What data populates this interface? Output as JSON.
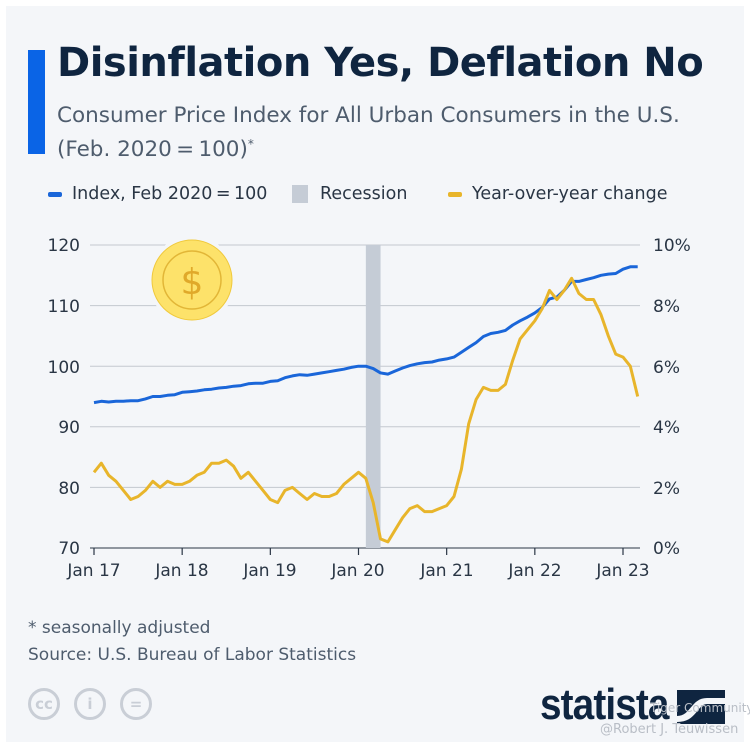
{
  "header": {
    "title": "Disinflation Yes, Deflation No",
    "subtitle_line1": "Consumer Price Index for All Urban Consumers in the U.S.",
    "subtitle_line2": "(Feb. 2020 = 100)",
    "subtitle_mark": "*"
  },
  "legend": {
    "index": "Index, Feb 2020 = 100",
    "recession": "Recession",
    "yoy": "Year-over-year change"
  },
  "colors": {
    "accent": "#0a64e6",
    "index": "#1a66d9",
    "yoy": "#e8b52b",
    "recession": "#c5ccd6",
    "title": "#0f2540"
  },
  "chart_data": {
    "type": "line",
    "x_start": "Jan 2017",
    "x_end": "Mar 2023",
    "frequency": "monthly",
    "x_ticks": [
      "Jan 17",
      "Jan 18",
      "Jan 19",
      "Jan 20",
      "Jan 21",
      "Jan 22",
      "Jan 23"
    ],
    "y_left": {
      "ticks": [
        "70",
        "80",
        "90",
        "100",
        "110",
        "120"
      ],
      "range": [
        70,
        120
      ]
    },
    "y_right": {
      "ticks": [
        "0%",
        "2%",
        "4%",
        "6%",
        "8%",
        "10%"
      ],
      "range": [
        0,
        10
      ],
      "unit": "%"
    },
    "grid": true,
    "legend_position": "top",
    "recession": {
      "start": "Feb 2020",
      "end": "Apr 2020"
    },
    "series": [
      {
        "name": "Index, Feb 2020=100",
        "axis": "left",
        "values": [
          94.0,
          94.2,
          94.1,
          94.2,
          94.2,
          94.3,
          94.3,
          94.6,
          95.0,
          95.0,
          95.2,
          95.3,
          95.7,
          95.8,
          95.9,
          96.1,
          96.2,
          96.4,
          96.5,
          96.7,
          96.8,
          97.1,
          97.2,
          97.2,
          97.5,
          97.6,
          98.1,
          98.4,
          98.6,
          98.5,
          98.7,
          98.9,
          99.1,
          99.3,
          99.5,
          99.8,
          100.0,
          100.0,
          99.6,
          98.9,
          98.7,
          99.2,
          99.7,
          100.1,
          100.4,
          100.6,
          100.7,
          101.0,
          101.2,
          101.5,
          102.3,
          103.1,
          103.9,
          104.9,
          105.4,
          105.6,
          105.9,
          106.8,
          107.5,
          108.1,
          108.8,
          109.7,
          111.1,
          111.4,
          112.5,
          114.0,
          114.0,
          114.3,
          114.6,
          115.0,
          115.2,
          115.3,
          116.0,
          116.4,
          116.4
        ]
      },
      {
        "name": "Year-over-year change",
        "axis": "right",
        "values": [
          2.5,
          2.8,
          2.4,
          2.2,
          1.9,
          1.6,
          1.7,
          1.9,
          2.2,
          2.0,
          2.2,
          2.1,
          2.1,
          2.2,
          2.4,
          2.5,
          2.8,
          2.8,
          2.9,
          2.7,
          2.3,
          2.5,
          2.2,
          1.9,
          1.6,
          1.5,
          1.9,
          2.0,
          1.8,
          1.6,
          1.8,
          1.7,
          1.7,
          1.8,
          2.1,
          2.3,
          2.5,
          2.3,
          1.5,
          0.3,
          0.2,
          0.6,
          1.0,
          1.3,
          1.4,
          1.2,
          1.2,
          1.3,
          1.4,
          1.7,
          2.6,
          4.1,
          4.9,
          5.3,
          5.2,
          5.2,
          5.4,
          6.2,
          6.9,
          7.2,
          7.5,
          7.9,
          8.5,
          8.2,
          8.5,
          8.9,
          8.4,
          8.2,
          8.2,
          7.7,
          7.0,
          6.4,
          6.3,
          6.0,
          5.0
        ]
      }
    ]
  },
  "footer": {
    "note": "* seasonally adjusted",
    "source": "Source: U.S. Bureau of Labor Statistics",
    "cc_icons": [
      "cc-icon",
      "attribution-icon",
      "no-derivatives-icon"
    ],
    "cc_labels": [
      "cc",
      "i",
      "="
    ],
    "logo": "statista",
    "watermark_community": "Tiger Community",
    "watermark_author": "@Robert J. Teuwissen"
  },
  "decor": {
    "coin_symbol": "$"
  }
}
